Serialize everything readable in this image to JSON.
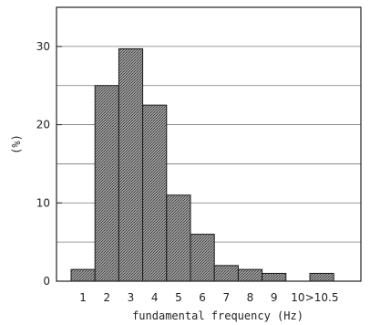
{
  "chart_data": {
    "type": "bar",
    "categories": [
      "1",
      "2",
      "3",
      "4",
      "5",
      "6",
      "7",
      "8",
      "9",
      "10",
      ">10.5"
    ],
    "values": [
      1.5,
      25,
      29.7,
      22.5,
      11,
      6,
      2,
      1.5,
      1,
      0,
      1
    ],
    "xlabel": "fundamental frequency (Hz)",
    "ylabel": "(%)",
    "ylim": [
      0,
      35
    ],
    "yticks": [
      0,
      10,
      20,
      30
    ],
    "grid": "horizontal",
    "bar_color": "#888888",
    "bar_pattern": "crosshatch"
  }
}
